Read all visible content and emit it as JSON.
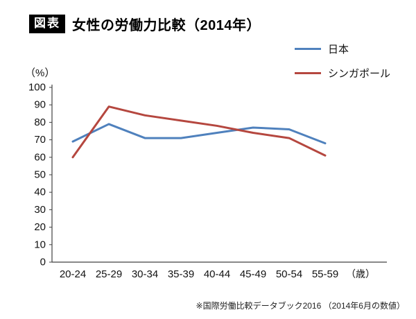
{
  "header": {
    "badge": "図表",
    "title": "女性の労働力比較（2014年）"
  },
  "axis_unit_y": "（%）",
  "axis_unit_x": "（歳）",
  "footnote": "※国際労働比較データブック2016 （2014年6月の数値）",
  "chart_data": {
    "type": "line",
    "title": "女性の労働力比較（2014年）",
    "categories": [
      "20-24",
      "25-29",
      "30-34",
      "35-39",
      "40-44",
      "45-49",
      "50-54",
      "55-59"
    ],
    "series": [
      {
        "name": "日本",
        "color": "#4f81bd",
        "values": [
          69,
          79,
          71,
          71,
          74,
          77,
          76,
          68
        ]
      },
      {
        "name": "シンガポール",
        "color": "#b5473f",
        "values": [
          60,
          89,
          84,
          81,
          78,
          74,
          71,
          61
        ]
      }
    ],
    "xlabel": "（歳）",
    "ylabel": "（%）",
    "ylim": [
      0,
      100
    ],
    "ytick_step": 10,
    "grid": false,
    "legend_position": "top-right"
  }
}
